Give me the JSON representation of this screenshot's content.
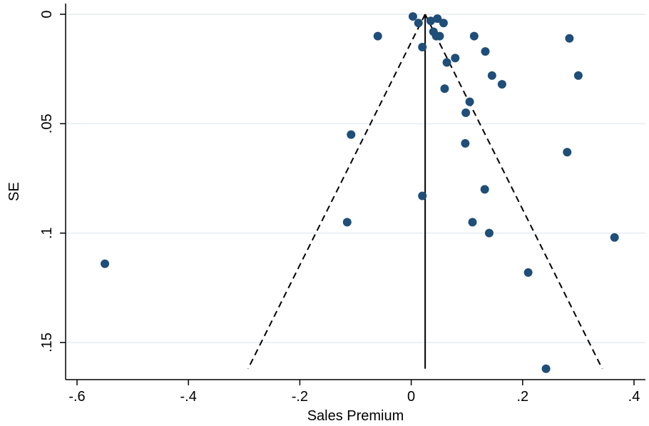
{
  "chart_data": {
    "type": "scatter",
    "title": "",
    "xlabel": "Sales Premium",
    "ylabel": "SE",
    "xlim": [
      -0.62,
      0.42
    ],
    "ylim": [
      0,
      0.163
    ],
    "y_inverted": true,
    "grid": "horizontal",
    "legend": "none",
    "x_ticks": [
      {
        "value": -0.6,
        "label": "-.6"
      },
      {
        "value": -0.4,
        "label": "-.4"
      },
      {
        "value": -0.2,
        "label": "-.2"
      },
      {
        "value": 0,
        "label": "0"
      },
      {
        "value": 0.2,
        "label": ".2"
      },
      {
        "value": 0.4,
        "label": ".4"
      }
    ],
    "y_ticks": [
      {
        "value": 0,
        "label": "0"
      },
      {
        "value": 0.05,
        "label": ".05"
      },
      {
        "value": 0.1,
        "label": ".1"
      },
      {
        "value": 0.15,
        "label": ".15"
      }
    ],
    "pooled_estimate": 0.025,
    "funnel": {
      "apex": [
        0.025,
        0
      ],
      "left_base": [
        -0.293,
        0.162
      ],
      "right_base": [
        0.343,
        0.162
      ]
    },
    "marker_color": "#1f4e79",
    "line_color": "#000000",
    "grid_color": "#e6ecf0",
    "points": [
      {
        "x": 0.003,
        "y": 0.001
      },
      {
        "x": 0.013,
        "y": 0.004
      },
      {
        "x": 0.035,
        "y": 0.003
      },
      {
        "x": 0.047,
        "y": 0.002
      },
      {
        "x": 0.058,
        "y": 0.004
      },
      {
        "x": 0.04,
        "y": 0.008
      },
      {
        "x": 0.045,
        "y": 0.01
      },
      {
        "x": 0.051,
        "y": 0.01
      },
      {
        "x": -0.06,
        "y": 0.01
      },
      {
        "x": 0.113,
        "y": 0.01
      },
      {
        "x": 0.284,
        "y": 0.011
      },
      {
        "x": 0.02,
        "y": 0.015
      },
      {
        "x": 0.133,
        "y": 0.017
      },
      {
        "x": 0.079,
        "y": 0.02
      },
      {
        "x": 0.064,
        "y": 0.022
      },
      {
        "x": 0.145,
        "y": 0.028
      },
      {
        "x": 0.3,
        "y": 0.028
      },
      {
        "x": 0.163,
        "y": 0.032
      },
      {
        "x": 0.06,
        "y": 0.034
      },
      {
        "x": 0.105,
        "y": 0.04
      },
      {
        "x": 0.098,
        "y": 0.045
      },
      {
        "x": -0.108,
        "y": 0.055
      },
      {
        "x": 0.097,
        "y": 0.059
      },
      {
        "x": 0.28,
        "y": 0.063
      },
      {
        "x": 0.132,
        "y": 0.08
      },
      {
        "x": 0.02,
        "y": 0.083
      },
      {
        "x": -0.115,
        "y": 0.095
      },
      {
        "x": 0.11,
        "y": 0.095
      },
      {
        "x": 0.14,
        "y": 0.1
      },
      {
        "x": 0.365,
        "y": 0.102
      },
      {
        "x": -0.55,
        "y": 0.114
      },
      {
        "x": 0.21,
        "y": 0.118
      },
      {
        "x": 0.242,
        "y": 0.162
      }
    ]
  }
}
